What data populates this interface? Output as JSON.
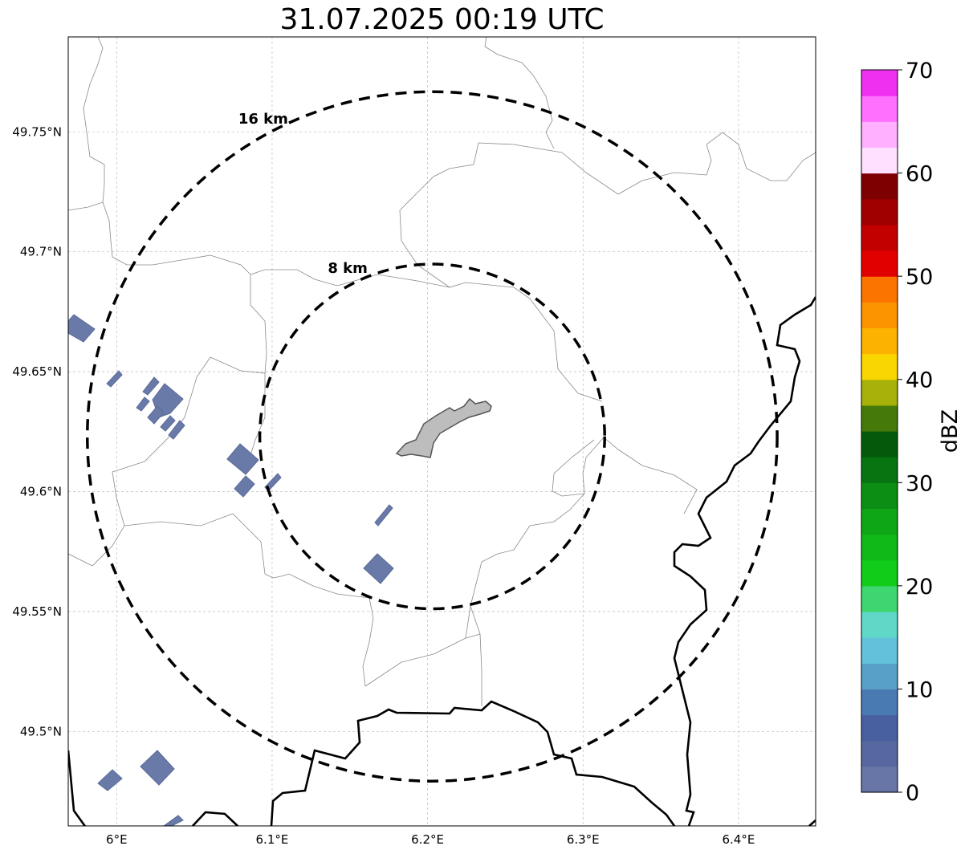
{
  "title": "31.07.2025 00:19 UTC",
  "map": {
    "lon_range": [
      5.97,
      6.45
    ],
    "lat_range": [
      49.46,
      49.79
    ],
    "x_ticks": [
      {
        "value": 6.0,
        "label": "6°E"
      },
      {
        "value": 6.1,
        "label": "6.1°E"
      },
      {
        "value": 6.2,
        "label": "6.2°E"
      },
      {
        "value": 6.3,
        "label": "6.3°E"
      },
      {
        "value": 6.4,
        "label": "6.4°E"
      }
    ],
    "y_ticks": [
      {
        "value": 49.75,
        "label": "49.75°N"
      },
      {
        "value": 49.7,
        "label": "49.7°N"
      },
      {
        "value": 49.65,
        "label": "49.65°N"
      },
      {
        "value": 49.6,
        "label": "49.6°N"
      },
      {
        "value": 49.55,
        "label": "49.55°N"
      },
      {
        "value": 49.5,
        "label": "49.5°N"
      }
    ],
    "grid": true,
    "center": {
      "lon": 6.203,
      "lat": 49.623
    },
    "rings": [
      {
        "radius_km": 8,
        "label": "8 km"
      },
      {
        "radius_km": 16,
        "label": "16 km"
      }
    ],
    "city_fill_color": "#bdbdbd",
    "echo_color": "#6a7aa8"
  },
  "colorbar": {
    "label": "dBZ",
    "min": 0,
    "max": 70,
    "step": 2.5,
    "ticks": [
      {
        "value": 0,
        "label": "0"
      },
      {
        "value": 10,
        "label": "10"
      },
      {
        "value": 20,
        "label": "20"
      },
      {
        "value": 30,
        "label": "30"
      },
      {
        "value": 40,
        "label": "40"
      },
      {
        "value": 50,
        "label": "50"
      },
      {
        "value": 60,
        "label": "60"
      },
      {
        "value": 70,
        "label": "70"
      }
    ],
    "colors": [
      "#6776a6",
      "#5768a0",
      "#4860a0",
      "#4a7ab2",
      "#58a0c8",
      "#62c2dc",
      "#60d8c8",
      "#3ed670",
      "#12cc1a",
      "#10b818",
      "#0ea616",
      "#0b8e13",
      "#077410",
      "#045a0a",
      "#457a0a",
      "#a8b00a",
      "#f9d600",
      "#fcb200",
      "#fc9400",
      "#fc7400",
      "#e00000",
      "#c20000",
      "#a00000",
      "#7e0000",
      "#ffe0ff",
      "#ffb0ff",
      "#ff70ff",
      "#f030f0"
    ]
  }
}
